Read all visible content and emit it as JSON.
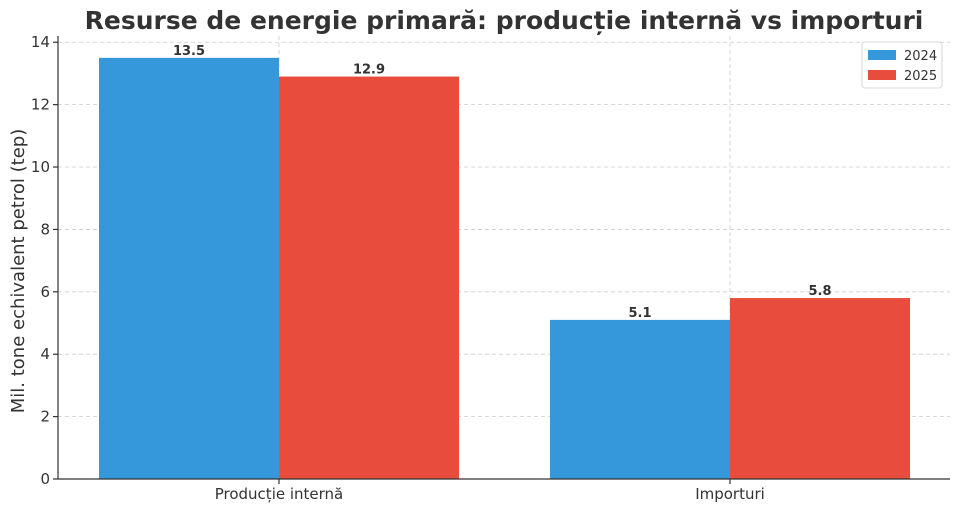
{
  "chart_data": {
    "type": "bar",
    "title": "Resurse de energie primară: producție internă vs importuri",
    "xlabel": "",
    "ylabel": "Mil. tone echivalent petrol (tep)",
    "categories": [
      "Producție internă",
      "Importuri"
    ],
    "series": [
      {
        "name": "2024",
        "color": "#3498db",
        "values": [
          13.5,
          5.1
        ],
        "labels": [
          "13.5",
          "5.1"
        ]
      },
      {
        "name": "2025",
        "color": "#e74c3c",
        "values": [
          12.9,
          5.8
        ],
        "labels": [
          "12.9",
          "5.8"
        ]
      }
    ],
    "ylim": [
      0,
      14.2
    ],
    "yticks": [
      "0",
      "2",
      "4",
      "6",
      "8",
      "10",
      "12",
      "14"
    ],
    "grid": true,
    "legend_position": "top-right"
  }
}
